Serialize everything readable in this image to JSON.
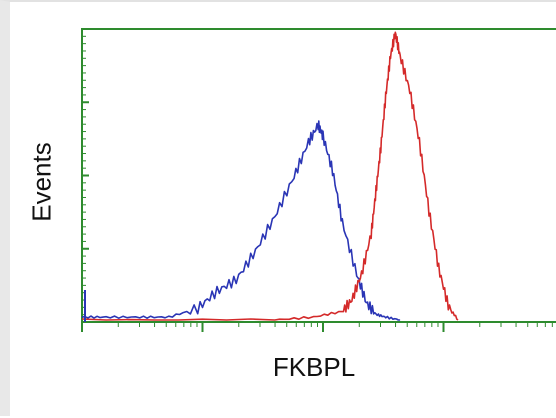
{
  "chart_data": {
    "type": "line",
    "title": "",
    "xlabel": "FKBPL",
    "ylabel": "Events",
    "xscale": "log",
    "grid": false,
    "legend": "none",
    "axis_color": "#2e8b2e",
    "series": [
      {
        "color": "#2a35b5",
        "x": [
          0.0,
          0.05,
          0.12,
          0.18,
          0.24,
          0.28,
          0.32,
          0.36,
          0.4,
          0.44,
          0.47,
          0.49,
          0.5,
          0.52,
          0.54,
          0.57,
          0.59,
          0.61,
          0.63,
          0.66
        ],
        "y": [
          0.01,
          0.01,
          0.01,
          0.01,
          0.04,
          0.1,
          0.14,
          0.24,
          0.36,
          0.5,
          0.62,
          0.68,
          0.64,
          0.52,
          0.34,
          0.16,
          0.06,
          0.02,
          0.01,
          0.0
        ]
      },
      {
        "color": "#d42a2a",
        "x": [
          0.0,
          0.4,
          0.48,
          0.54,
          0.56,
          0.58,
          0.6,
          0.61,
          0.62,
          0.63,
          0.64,
          0.65,
          0.66,
          0.68,
          0.7,
          0.72,
          0.74,
          0.76,
          0.78
        ],
        "y": [
          0.0,
          0.0,
          0.01,
          0.03,
          0.07,
          0.16,
          0.3,
          0.45,
          0.6,
          0.78,
          0.92,
          1.0,
          0.92,
          0.8,
          0.62,
          0.38,
          0.18,
          0.05,
          0.0
        ]
      }
    ]
  }
}
